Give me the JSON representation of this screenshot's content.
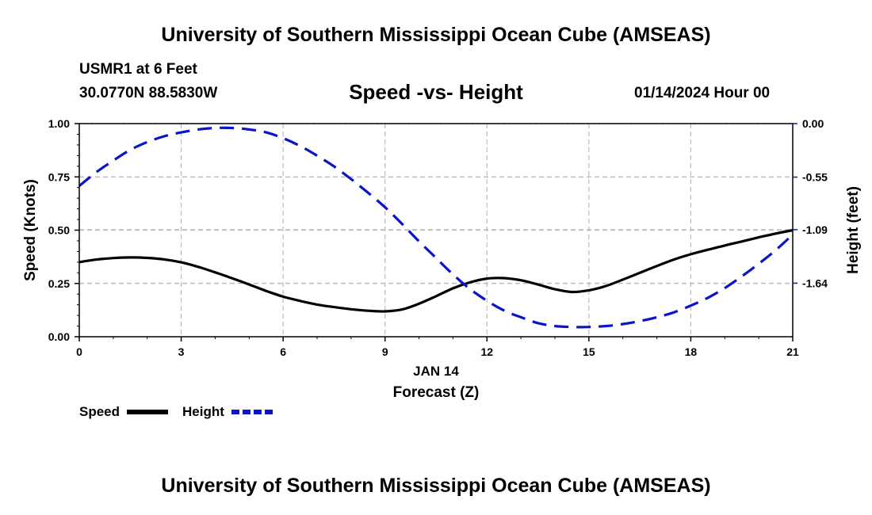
{
  "header": {
    "title": "University of Southern Mississippi Ocean Cube (AMSEAS)",
    "station": "USMR1 at 6 Feet",
    "coords": "30.0770N  88.5830W",
    "subtitle": "Speed -vs- Height",
    "datetime": "01/14/2024 Hour 00"
  },
  "footer": {
    "title": "University of Southern Mississippi Ocean Cube (AMSEAS)"
  },
  "colors": {
    "speed": "#000000",
    "height": "#0a14c8",
    "grid": "#bbbbbb"
  },
  "chart_data": {
    "type": "line",
    "title": "Speed -vs- Height",
    "xlabel": "Forecast (Z)",
    "xdate": "JAN 14",
    "ylabel_left": "Speed (Knots)",
    "ylabel_right": "Height (feet)",
    "x_ticks": [
      0,
      3,
      6,
      9,
      12,
      15,
      18,
      21
    ],
    "xlim": [
      0,
      21
    ],
    "ylim_left": [
      0,
      1.0
    ],
    "y_ticks_left": [
      "0.00",
      "0.25",
      "0.50",
      "0.75",
      "1.00"
    ],
    "ylim_right": [
      -2.19,
      0.0
    ],
    "y_ticks_right": [
      "0.00",
      "-0.55",
      "-1.09",
      "-1.64"
    ],
    "grid": true,
    "legend_position": "bottom-left",
    "series": [
      {
        "name": "Speed",
        "axis": "left",
        "style": "solid",
        "x": [
          0,
          0.5,
          1,
          1.5,
          2,
          2.5,
          3,
          3.5,
          4,
          4.5,
          5,
          5.5,
          6,
          6.5,
          7,
          7.5,
          8,
          8.5,
          9,
          9.5,
          10,
          10.5,
          11,
          11.5,
          12,
          12.5,
          13,
          13.5,
          14,
          14.5,
          15,
          15.5,
          16,
          16.5,
          17,
          17.5,
          18,
          18.5,
          19,
          19.5,
          20,
          20.5,
          21
        ],
        "values": [
          0.35,
          0.362,
          0.369,
          0.372,
          0.37,
          0.363,
          0.349,
          0.328,
          0.302,
          0.274,
          0.245,
          0.215,
          0.188,
          0.168,
          0.151,
          0.139,
          0.129,
          0.122,
          0.119,
          0.128,
          0.155,
          0.19,
          0.227,
          0.255,
          0.273,
          0.275,
          0.265,
          0.245,
          0.223,
          0.21,
          0.218,
          0.238,
          0.268,
          0.3,
          0.332,
          0.362,
          0.387,
          0.408,
          0.428,
          0.447,
          0.466,
          0.484,
          0.5
        ]
      },
      {
        "name": "Height",
        "axis": "right",
        "style": "dashed",
        "x": [
          0,
          0.5,
          1,
          1.5,
          2,
          2.5,
          3,
          3.5,
          4,
          4.5,
          5,
          5.5,
          6,
          6.5,
          7,
          7.5,
          8,
          8.5,
          9,
          9.5,
          10,
          10.5,
          11,
          11.5,
          12,
          12.5,
          13,
          13.5,
          14,
          14.5,
          15,
          15.5,
          16,
          16.5,
          17,
          17.5,
          18,
          18.5,
          19,
          19.5,
          20,
          20.5,
          21
        ],
        "values": [
          -0.64,
          -0.5,
          -0.38,
          -0.27,
          -0.19,
          -0.13,
          -0.09,
          -0.06,
          -0.045,
          -0.045,
          -0.06,
          -0.09,
          -0.15,
          -0.23,
          -0.33,
          -0.44,
          -0.57,
          -0.71,
          -0.86,
          -1.03,
          -1.21,
          -1.38,
          -1.55,
          -1.7,
          -1.82,
          -1.92,
          -1.99,
          -2.05,
          -2.08,
          -2.09,
          -2.09,
          -2.08,
          -2.06,
          -2.03,
          -1.99,
          -1.94,
          -1.87,
          -1.79,
          -1.69,
          -1.57,
          -1.44,
          -1.3,
          -1.14
        ]
      }
    ]
  }
}
